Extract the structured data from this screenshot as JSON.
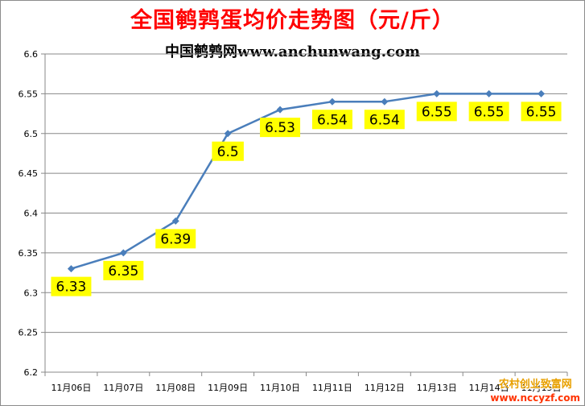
{
  "chart_data": {
    "type": "line",
    "title": "全国鹌鹑蛋均价走势图（元/斤）",
    "subtitle": "中国鹌鹑网www.anchunwang.com",
    "categories": [
      "11月06日",
      "11月07日",
      "11月08日",
      "11月09日",
      "11月10日",
      "11月11日",
      "11月12日",
      "11月13日",
      "11月14日",
      "11月15日"
    ],
    "series": [
      {
        "values": [
          6.33,
          6.35,
          6.39,
          6.5,
          6.53,
          6.54,
          6.54,
          6.55,
          6.55,
          6.55
        ]
      }
    ],
    "data_labels": [
      "6.33",
      "6.35",
      "6.39",
      "6.5",
      "6.53",
      "6.54",
      "6.54",
      "6.55",
      "6.55",
      "6.55"
    ],
    "ylim": [
      6.2,
      6.6
    ],
    "yticks": [
      6.2,
      6.25,
      6.3,
      6.35,
      6.4,
      6.45,
      6.5,
      6.55,
      6.6
    ],
    "ytick_labels": [
      "6.2",
      "6.25",
      "6.3",
      "6.35",
      "6.4",
      "6.45",
      "6.5",
      "6.55",
      "6.6"
    ],
    "grid": "horizontal",
    "legend": "none",
    "colors": {
      "line": "#4a7ebb",
      "grid": "#888888",
      "label_bg": "#ffff00",
      "title": "#ff0000"
    }
  },
  "watermark": {
    "line1": "农村创业致富网",
    "line2": "www.nccyzf.com"
  }
}
